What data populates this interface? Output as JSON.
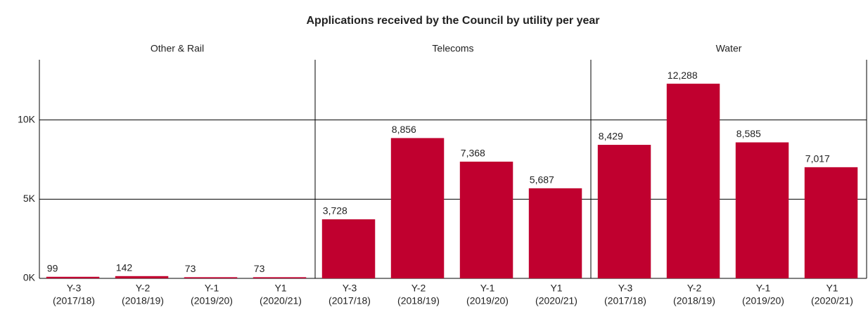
{
  "chart_data": {
    "type": "bar",
    "title": "Applications received by the Council by utility per year",
    "categories": [
      [
        "Y-3",
        "(2017/18)"
      ],
      [
        "Y-2",
        "(2018/19)"
      ],
      [
        "Y-1",
        "(2019/20)"
      ],
      [
        "Y1",
        "(2020/21)"
      ]
    ],
    "series": [
      {
        "name": "Other & Rail",
        "color": "#c0002f",
        "values": [
          99,
          142,
          73,
          73
        ],
        "value_labels": [
          "99",
          "142",
          "73",
          "73"
        ]
      },
      {
        "name": "Telecoms",
        "color": "#c0002f",
        "values": [
          3728,
          8856,
          7368,
          5687
        ],
        "value_labels": [
          "3,728",
          "8,856",
          "7,368",
          "5,687"
        ]
      },
      {
        "name": "Water",
        "color": "#c0002f",
        "values": [
          8429,
          12288,
          8585,
          7017
        ],
        "value_labels": [
          "8,429",
          "12,288",
          "8,585",
          "7,017"
        ]
      }
    ],
    "ylim": [
      0,
      13800
    ],
    "yticks": [
      {
        "value": 0,
        "label": "0K"
      },
      {
        "value": 5000,
        "label": "5K"
      },
      {
        "value": 10000,
        "label": "10K"
      }
    ],
    "grid": true
  }
}
